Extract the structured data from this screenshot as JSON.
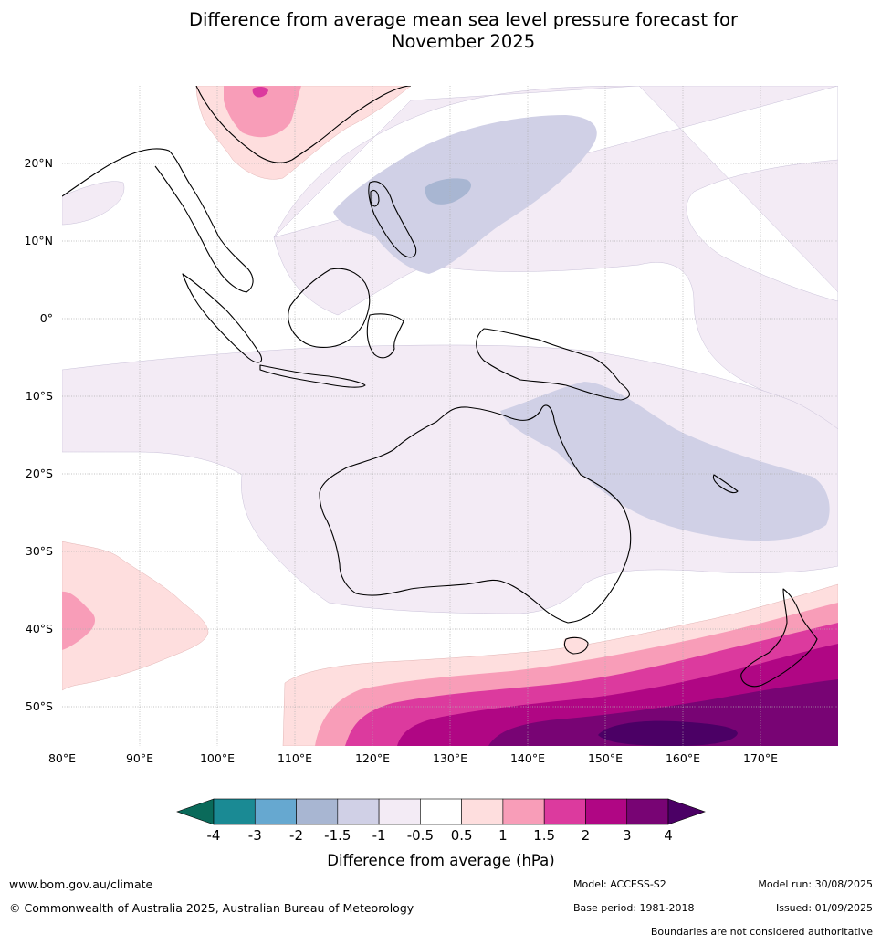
{
  "title_lines": [
    "Difference from average mean sea level pressure forecast for",
    "November 2025"
  ],
  "lat_labels": [
    "20°N",
    "10°N",
    "0°",
    "10°S",
    "20°S",
    "30°S",
    "40°S",
    "50°S"
  ],
  "lon_labels": [
    "80°E",
    "90°E",
    "100°E",
    "110°E",
    "120°E",
    "130°E",
    "140°E",
    "150°E",
    "160°E",
    "170°E"
  ],
  "colorbar": {
    "ticks": [
      "-4",
      "-3",
      "-2",
      "-1.5",
      "-1",
      "-0.5",
      "0.5",
      "1",
      "1.5",
      "2",
      "3",
      "4"
    ],
    "colors": [
      "#1a8a94",
      "#66a8d0",
      "#a8b6d2",
      "#d0d0e6",
      "#f3ebf5",
      "#ffffff",
      "#fedede",
      "#f89db8",
      "#dc3a9e",
      "#b00684",
      "#780474"
    ],
    "under_color": "#0a6a5a",
    "over_color": "#4b0065",
    "label": "Difference from average (hPa)"
  },
  "footer": {
    "url": "www.bom.gov.au/climate",
    "copyright": "© Commonwealth of Australia 2025, Australian Bureau of Meteorology",
    "model": "Model: ACCESS-S2",
    "base_period": "Base period: 1981-2018",
    "model_run": "Model run: 30/08/2025",
    "issued": "Issued: 01/09/2025",
    "disclaimer": "Boundaries are not considered authoritative"
  }
}
